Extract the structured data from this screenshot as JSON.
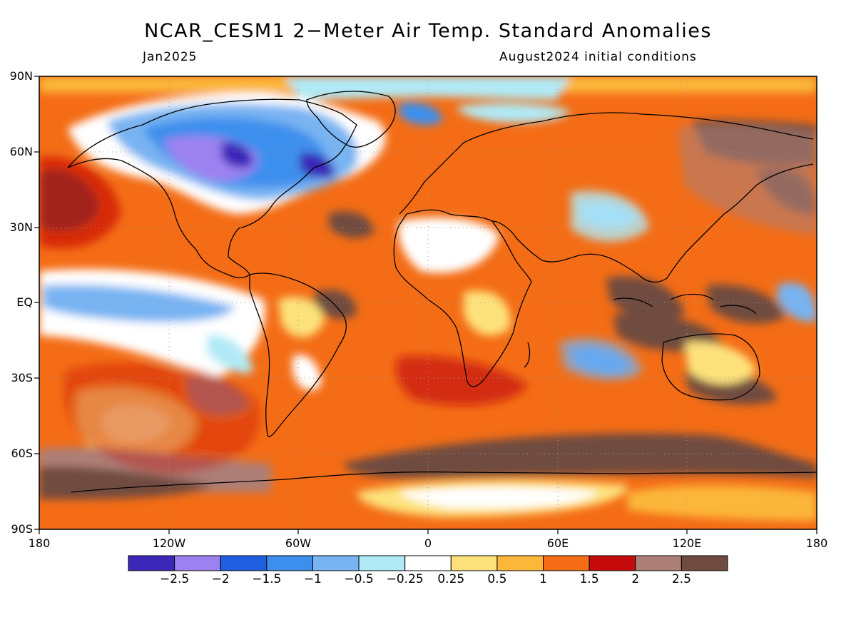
{
  "title": "NCAR_CESM1 2−Meter Air Temp. Standard Anomalies",
  "valid_month": "Jan2025",
  "initial_conditions": "August2024 initial conditions",
  "lat_labels": [
    "90N",
    "60N",
    "30N",
    "EQ",
    "30S",
    "60S",
    "90S"
  ],
  "lon_labels": [
    "180",
    "120W",
    "60W",
    "0",
    "60E",
    "120E",
    "180"
  ],
  "colorbar": {
    "colors": [
      "#3b28b8",
      "#9c82f0",
      "#1f5fe0",
      "#3d8fee",
      "#78b4f2",
      "#b0eaf6",
      "#ffffff",
      "#fde27c",
      "#fbb73a",
      "#f46d16",
      "#c40a0a",
      "#ad7f77",
      "#6f4b3f"
    ],
    "tick_labels": [
      "−2.5",
      "−2",
      "−1.5",
      "−1",
      "−0.5",
      "−0.25",
      "0.25",
      "0.5",
      "1",
      "1.5",
      "2",
      "2.5"
    ]
  }
}
